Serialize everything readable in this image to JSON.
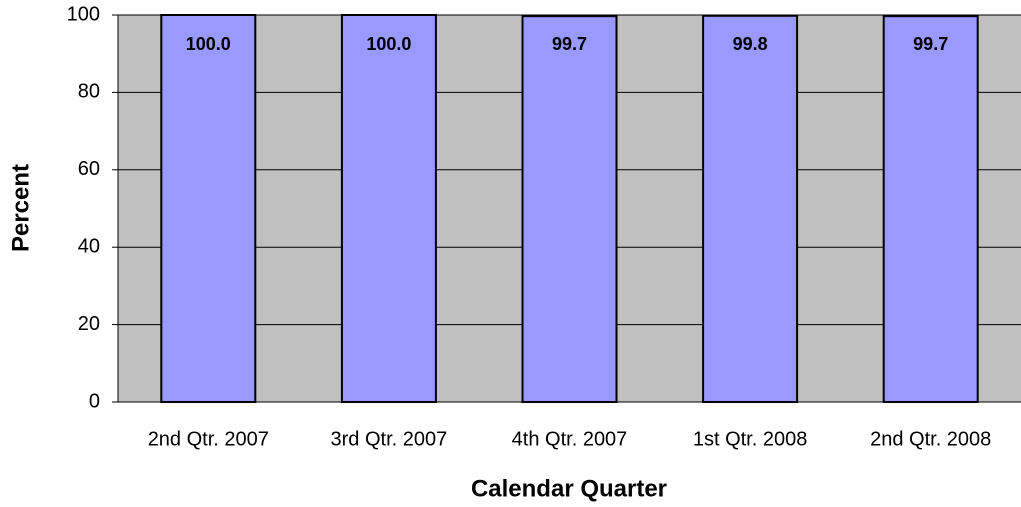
{
  "chart_data": {
    "type": "bar",
    "xlabel": "Calendar Quarter",
    "ylabel": "Percent",
    "categories": [
      "2nd Qtr. 2007",
      "3rd Qtr. 2007",
      "4th Qtr. 2007",
      "1st Qtr. 2008",
      "2nd Qtr. 2008"
    ],
    "values": [
      100,
      100,
      99.7,
      99.8,
      99.7
    ],
    "value_labels": [
      "100.0",
      "100.0",
      "99.7",
      "99.8",
      "99.7"
    ],
    "color": "#9999ff",
    "plot_color": "#c0c0c0",
    "ylim": [
      0,
      100
    ],
    "yticks": [
      0,
      20,
      40,
      60,
      80,
      100
    ],
    "grid": true
  }
}
